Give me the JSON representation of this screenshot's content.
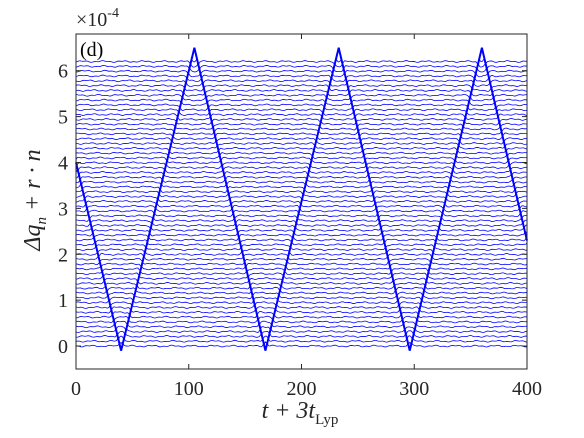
{
  "chart_data": {
    "type": "line",
    "panel_label": "(d)",
    "scale_factor": {
      "base": "×10",
      "exponent": "-4"
    },
    "xlabel": {
      "main": "t + 3t",
      "sub": "Lyp"
    },
    "ylabel": {
      "main": "Δq",
      "sub": "n",
      "rest": " + r · n"
    },
    "xlim": [
      0,
      400
    ],
    "ylim": [
      -0.5,
      6.8
    ],
    "x_ticks": [
      0,
      100,
      200,
      300,
      400
    ],
    "x_tick_labels": [
      "0",
      "100",
      "200",
      "300",
      "400"
    ],
    "y_ticks": [
      0,
      1,
      2,
      3,
      4,
      5,
      6
    ],
    "y_tick_labels": [
      "0",
      "1",
      "2",
      "3",
      "4",
      "5",
      "6"
    ],
    "grid": false,
    "line_color": "#0000ff",
    "series_count": 60,
    "series_offset_spacing": 0.1051,
    "front": {
      "description": "sawtooth envelope swept by the stacked traces",
      "x": [
        0,
        40,
        105,
        168,
        233,
        296,
        360,
        400
      ],
      "y": [
        4.0,
        -0.1,
        6.5,
        -0.1,
        6.5,
        -0.1,
        6.5,
        2.3
      ]
    }
  }
}
